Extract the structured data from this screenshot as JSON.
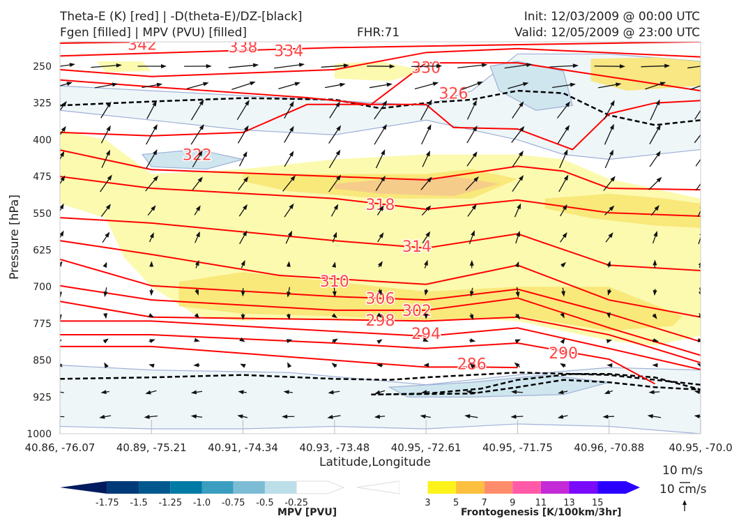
{
  "chart_data": {
    "type": "cross-section",
    "title_left": [
      "Theta-E (K) [red] | -D(theta-E)/DZ-[black]",
      "Fgen [filled] | MPV (PVU) [filled]"
    ],
    "title_center": "FHR:71",
    "title_right": [
      "Init: 12/03/2009 @ 00:00 UTC",
      "Valid: 12/05/2009 @ 23:00 UTC"
    ],
    "xlabel": "Latitude,Longitude",
    "ylabel": "Pressure [hPa]",
    "x_ticks": [
      "40.86, -76.07",
      "40.89, -75.21",
      "40.91, -74.34",
      "40.93, -73.48",
      "40.95, -72.61",
      "40.95, -71.75",
      "40.96, -70.88",
      "40.95, -70.0"
    ],
    "y_ticks": [
      250,
      325,
      400,
      475,
      550,
      625,
      700,
      775,
      850,
      925,
      1000
    ],
    "ylim": [
      200,
      1000
    ],
    "theta_e_contours": [
      {
        "value": 342,
        "x": [
          0,
          1
        ],
        "p": [
          203,
          200
        ],
        "label_at": [
          0.9,
          205
        ]
      },
      {
        "value": 338,
        "x": [
          0,
          3,
          7
        ],
        "p": [
          229,
          212,
          200
        ],
        "label_at": [
          2.0,
          210
        ]
      },
      {
        "value": 334,
        "x": [
          0,
          1,
          3,
          4,
          5,
          7
        ],
        "p": [
          257,
          271,
          257,
          222,
          214,
          231
        ],
        "label_at": [
          2.5,
          218
        ]
      },
      {
        "value": 330,
        "x": [
          0,
          1,
          2.7,
          3.4,
          4,
          5,
          7
        ],
        "p": [
          278,
          292,
          314,
          328,
          243,
          243,
          300
        ],
        "label_at": [
          4.0,
          252
        ]
      },
      {
        "value": 326,
        "x": [
          0,
          1,
          2,
          2.7,
          4,
          4.3,
          5,
          5.6,
          6,
          6.5,
          7
        ],
        "p": [
          385,
          392,
          385,
          328,
          328,
          375,
          378,
          420,
          347,
          325,
          320
        ],
        "label_at": [
          4.3,
          305
        ]
      },
      {
        "value": 322,
        "x": [
          0,
          1,
          3,
          4,
          5,
          5.5,
          6,
          7
        ],
        "p": [
          421,
          461,
          475,
          482,
          454,
          464,
          499,
          502
        ],
        "label_at": [
          1.5,
          430
        ]
      },
      {
        "value": 318,
        "x": [
          0,
          1,
          3,
          4,
          5,
          6,
          7
        ],
        "p": [
          475,
          499,
          520,
          542,
          523,
          549,
          556
        ],
        "label_at": [
          3.5,
          532
        ]
      },
      {
        "value": 314,
        "x": [
          0,
          1,
          3,
          4,
          5,
          6,
          7
        ],
        "p": [
          559,
          570,
          606,
          621,
          592,
          656,
          667
        ],
        "label_at": [
          3.9,
          617
        ]
      },
      {
        "value": 310,
        "x": [
          0,
          1,
          2.4,
          4,
          5,
          6,
          7
        ],
        "p": [
          606,
          634,
          677,
          695,
          656,
          727,
          762
        ],
        "label_at": [
          3.0,
          688
        ]
      },
      {
        "value": 306,
        "x": [
          0,
          1,
          3,
          4,
          5,
          6,
          7
        ],
        "p": [
          644,
          698,
          720,
          727,
          705,
          755,
          812
        ],
        "label_at": [
          3.5,
          723
        ]
      },
      {
        "value": 302,
        "x": [
          0,
          1,
          3,
          4,
          5,
          6,
          7
        ],
        "p": [
          698,
          727,
          748,
          748,
          723,
          784,
          840
        ],
        "label_at": [
          3.9,
          748
        ]
      },
      {
        "value": 298,
        "x": [
          0,
          1,
          3,
          4,
          5,
          6,
          7
        ],
        "p": [
          730,
          762,
          767,
          770,
          762,
          798,
          855
        ],
        "label_at": [
          3.5,
          768
        ]
      },
      {
        "value": 294,
        "x": [
          0,
          1,
          3,
          4,
          5,
          6,
          7
        ],
        "p": [
          770,
          770,
          791,
          801,
          784,
          826,
          869
        ],
        "label_at": [
          4.0,
          795
        ]
      },
      {
        "value": 290,
        "x": [
          0,
          1,
          3,
          4,
          5,
          6,
          6.5
        ],
        "p": [
          798,
          798,
          815,
          826,
          815,
          848,
          898
        ],
        "label_at": [
          5.5,
          835
        ]
      },
      {
        "value": 286,
        "x": [
          0,
          1,
          3,
          4,
          4.6,
          5
        ],
        "p": [
          822,
          822,
          850,
          864,
          864,
          865
        ],
        "label_at": [
          4.5,
          857
        ]
      }
    ],
    "stability_contours_dashed": [
      {
        "x": [
          0,
          1,
          2,
          3,
          3.5,
          4,
          4.5,
          5,
          5.5,
          6,
          6.5,
          7
        ],
        "p": [
          330,
          322,
          315,
          318,
          336,
          325,
          318,
          300,
          305,
          350,
          370,
          360
        ]
      },
      {
        "x": [
          0,
          1,
          2,
          3,
          3.6,
          4,
          5,
          6,
          7
        ],
        "p": [
          888,
          885,
          880,
          888,
          890,
          885,
          875,
          880,
          900
        ]
      },
      {
        "x": [
          3.4,
          4,
          4.6,
          5,
          5.6,
          6,
          6.5,
          7,
          6.5,
          6,
          5.5,
          5,
          4.5,
          3.4
        ],
        "p": [
          920,
          918,
          908,
          890,
          878,
          878,
          885,
          910,
          905,
          895,
          890,
          905,
          918,
          920
        ]
      }
    ],
    "fgen_regions": [
      {
        "level": 3,
        "x": [
          0,
          0.5,
          1,
          2,
          3,
          4,
          5,
          5.5,
          6,
          7,
          7,
          6.5,
          6,
          5,
          4,
          3.2,
          2.5,
          2,
          1.5,
          1,
          0.7,
          0.5,
          0
        ],
        "p": [
          380,
          400,
          470,
          460,
          440,
          430,
          430,
          440,
          480,
          520,
          800,
          820,
          810,
          770,
          760,
          770,
          765,
          770,
          760,
          700,
          640,
          560,
          530
        ]
      },
      {
        "level": 5,
        "x": [
          1.3,
          2,
          3,
          4,
          5,
          6,
          6.8,
          6.7,
          6,
          5,
          4,
          3,
          2,
          1.3
        ],
        "p": [
          690,
          670,
          690,
          710,
          700,
          700,
          760,
          780,
          790,
          760,
          770,
          760,
          755,
          740
        ]
      },
      {
        "level": 5,
        "x": [
          2,
          3,
          4,
          4.5,
          5,
          4.5,
          3.5,
          2.5,
          2
        ],
        "p": [
          470,
          470,
          470,
          460,
          480,
          520,
          520,
          505,
          485
        ]
      },
      {
        "level": 7,
        "x": [
          3,
          3.6,
          4.3,
          4.8,
          4.3,
          3.5,
          3
        ],
        "p": [
          490,
          480,
          475,
          490,
          515,
          510,
          500
        ]
      },
      {
        "level": 5,
        "x": [
          5.3,
          6,
          6.6,
          7,
          7,
          6.5,
          5.8,
          5.3
        ],
        "p": [
          520,
          510,
          520,
          530,
          580,
          575,
          560,
          540
        ]
      },
      {
        "level": 3,
        "x": [
          3,
          3.5,
          4,
          3.6,
          3
        ],
        "p": [
          245,
          240,
          260,
          280,
          275
        ]
      },
      {
        "level": 3,
        "x": [
          0.4,
          0.9,
          1,
          0.5
        ],
        "p": [
          240,
          240,
          260,
          262
        ]
      },
      {
        "level": 5,
        "x": [
          5.8,
          6.5,
          7,
          7,
          6.2,
          5.8
        ],
        "p": [
          235,
          232,
          240,
          290,
          300,
          280
        ]
      }
    ],
    "mpv_regions": [
      {
        "level": -0.25,
        "x": [
          0,
          1,
          2,
          3,
          4,
          4.5,
          5,
          6,
          7,
          7,
          6,
          5.5,
          5,
          4,
          3,
          2,
          1,
          0
        ],
        "p": [
          290,
          300,
          310,
          320,
          330,
          300,
          225,
          225,
          240,
          420,
          440,
          430,
          400,
          360,
          390,
          380,
          360,
          340
        ]
      },
      {
        "level": -0.25,
        "x": [
          0,
          1,
          2.5,
          3.4,
          4,
          5,
          6,
          7,
          7,
          6,
          5,
          4,
          3,
          2,
          1,
          0
        ],
        "p": [
          860,
          870,
          875,
          890,
          900,
          880,
          865,
          870,
          1000,
          985,
          980,
          990,
          985,
          990,
          990,
          985
        ]
      },
      {
        "level": -0.5,
        "x": [
          4.7,
          5,
          5.5,
          5.6,
          5.2,
          4.8
        ],
        "p": [
          250,
          240,
          260,
          330,
          340,
          300
        ]
      },
      {
        "level": -0.5,
        "x": [
          3.6,
          4.5,
          5.3,
          6,
          5.5,
          4.5,
          3.8
        ],
        "p": [
          905,
          895,
          880,
          895,
          920,
          925,
          925
        ]
      },
      {
        "level": -0.5,
        "x": [
          0.9,
          1.5,
          2,
          1.6,
          1
        ],
        "p": [
          430,
          420,
          440,
          460,
          455
        ]
      }
    ],
    "wind_rows": [
      {
        "p": 250,
        "u": 8,
        "v": 0.5
      },
      {
        "p": 290,
        "u": 6,
        "v": 1.5
      },
      {
        "p": 340,
        "u": 3,
        "v": 5
      },
      {
        "p": 390,
        "u": 3,
        "v": 5
      },
      {
        "p": 440,
        "u": 2.5,
        "v": 4.5
      },
      {
        "p": 490,
        "u": 3,
        "v": 4
      },
      {
        "p": 545,
        "u": 2,
        "v": 3
      },
      {
        "p": 600,
        "u": 1.5,
        "v": 3
      },
      {
        "p": 655,
        "u": 0.5,
        "v": 1.5
      },
      {
        "p": 710,
        "u": 0,
        "v": -2
      },
      {
        "p": 760,
        "u": 0.5,
        "v": -1
      },
      {
        "p": 810,
        "u": 1,
        "v": 0.2
      },
      {
        "p": 860,
        "u": -1,
        "v": 0.5
      },
      {
        "p": 915,
        "u": -2.5,
        "v": -0.2
      },
      {
        "p": 965,
        "u": -3,
        "v": 0
      }
    ],
    "mpv_colorbar": {
      "label": "MPV [PVU]",
      "ticks": [
        "-1.75",
        "-1.5",
        "-1.25",
        "-1.0",
        "-0.75",
        "-0.5",
        "-0.25"
      ],
      "colors": [
        "#001a5e",
        "#003a78",
        "#00588f",
        "#007ba6",
        "#3a9ec0",
        "#7dbcd5",
        "#bbdee8",
        "#ffffff"
      ]
    },
    "fgen_colorbar": {
      "label": "Frontogenesis [K/100km/3hr]",
      "ticks": [
        "3",
        "5",
        "7",
        "9",
        "11",
        "13",
        "15"
      ],
      "colors": [
        "#ffffff",
        "#ffffff",
        "#fcf31c",
        "#fcc03e",
        "#ff8d6c",
        "#ff5aa8",
        "#c42ad6",
        "#7a0afa",
        "#2a00ff"
      ]
    },
    "vector_key": {
      "horizontal": "10 m/s",
      "vertical": "10 cm/s"
    }
  }
}
